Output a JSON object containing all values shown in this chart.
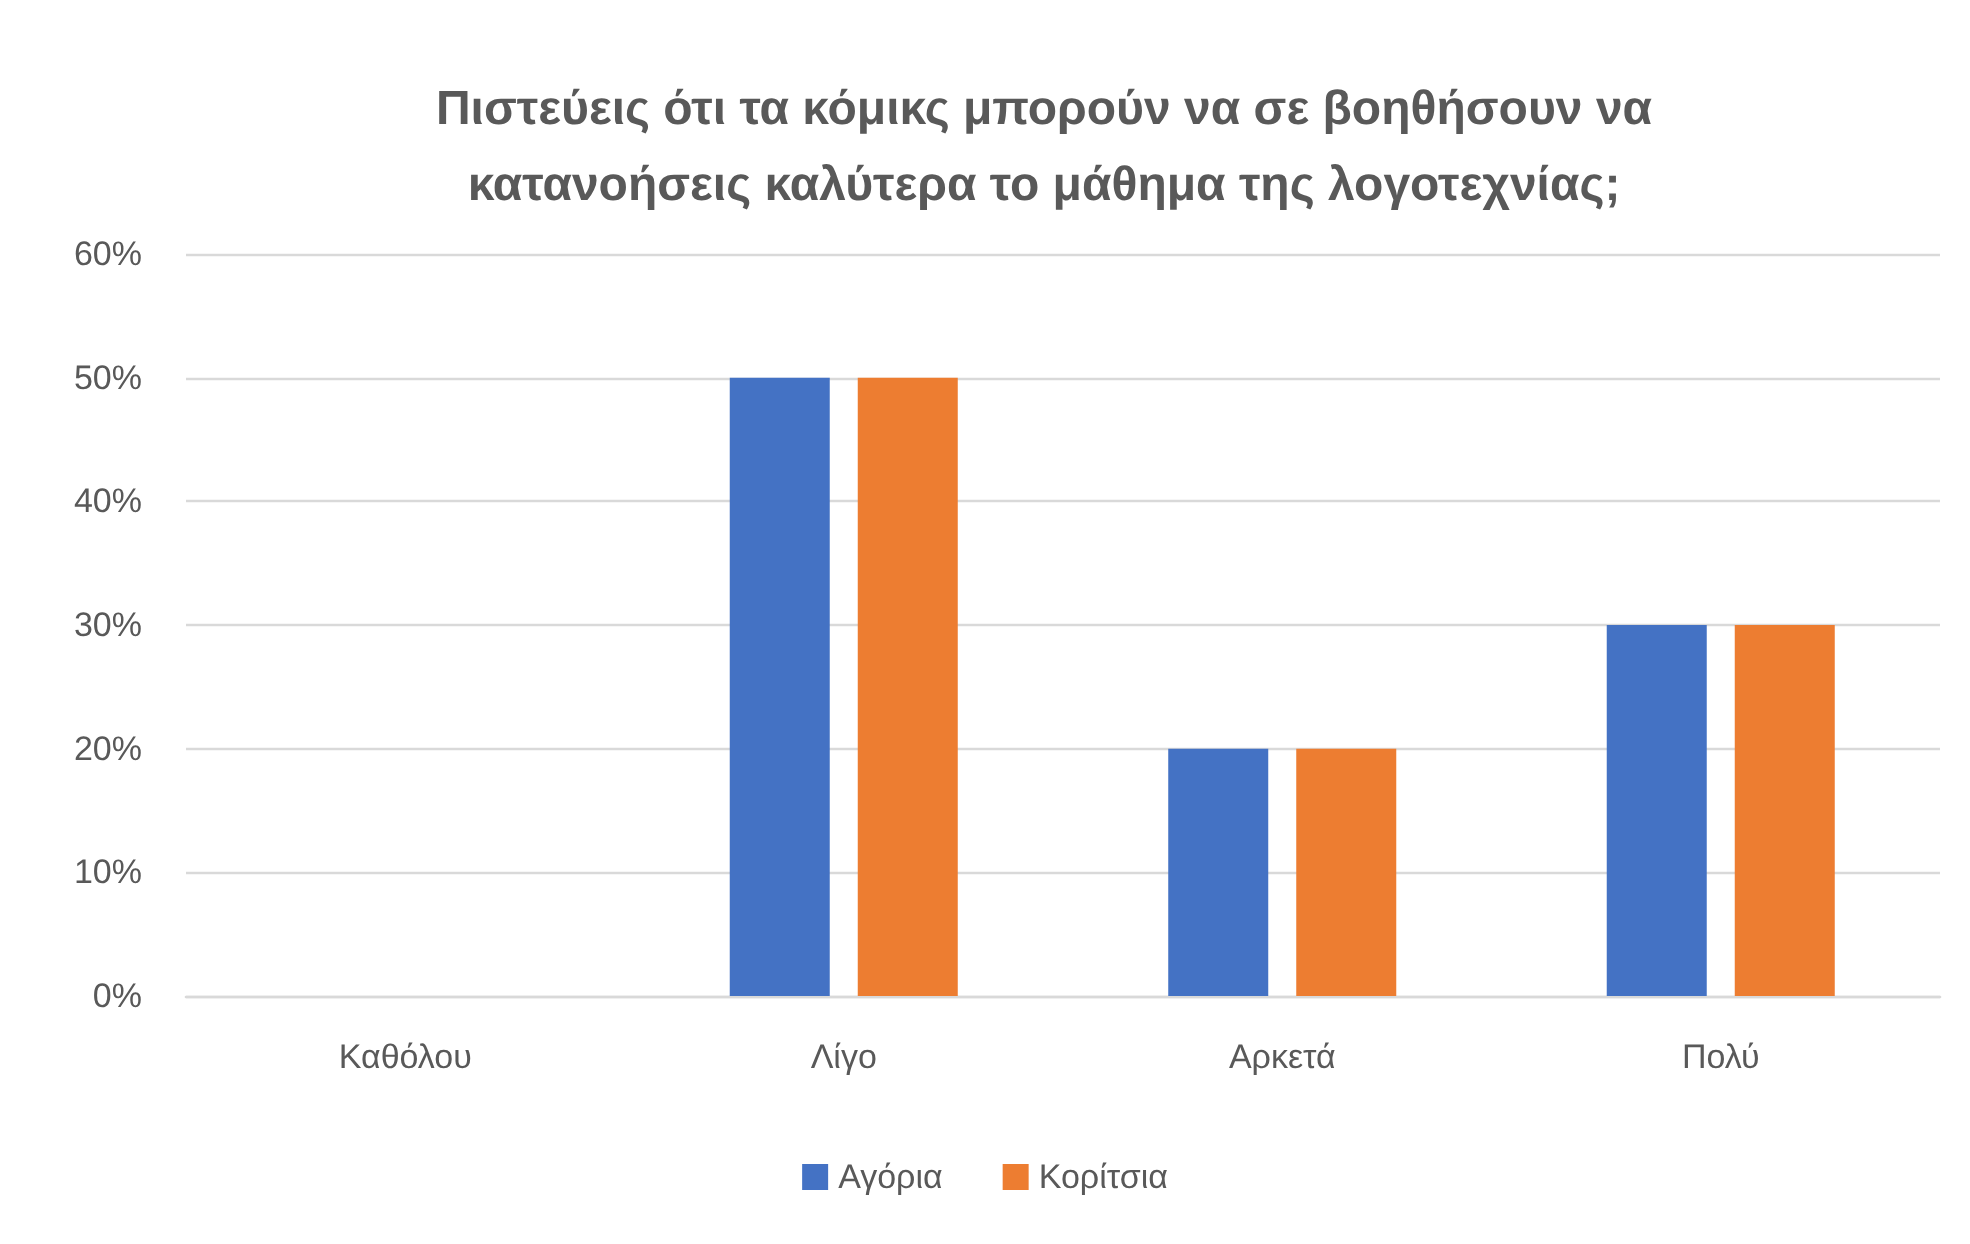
{
  "chart_data": {
    "type": "bar",
    "title": "Πιστεύεις ότι τα κόμικς μπορούν να σε βοηθήσουν να κατανοήσεις καλύτερα το μάθημα της λογοτεχνίας;",
    "categories": [
      "Καθόλου",
      "Λίγο",
      "Αρκετά",
      "Πολύ"
    ],
    "series": [
      {
        "name": "Αγόρια",
        "color": "#4472c4",
        "values": [
          0,
          50,
          20,
          30
        ]
      },
      {
        "name": "Κορίτσια",
        "color": "#ed7d31",
        "values": [
          0,
          50,
          20,
          30
        ]
      }
    ],
    "ylim": [
      0,
      60
    ],
    "yticks": [
      {
        "value": 0,
        "label": "0%"
      },
      {
        "value": 10,
        "label": "10%"
      },
      {
        "value": 20,
        "label": "20%"
      },
      {
        "value": 30,
        "label": "30%"
      },
      {
        "value": 40,
        "label": "40%"
      },
      {
        "value": 50,
        "label": "50%"
      },
      {
        "value": 60,
        "label": "60%"
      }
    ],
    "grid": "y",
    "legend": "bottom"
  }
}
